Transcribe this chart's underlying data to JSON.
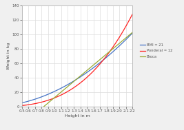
{
  "title": "",
  "xlabel": "Height in m",
  "ylabel": "Weight in kg",
  "xmin": 0.5,
  "xmax": 2.2,
  "ymin": 0,
  "ymax": 140,
  "xticks": [
    0.5,
    0.6,
    0.7,
    0.8,
    0.9,
    1.0,
    1.1,
    1.2,
    1.3,
    1.4,
    1.5,
    1.6,
    1.7,
    1.8,
    1.9,
    2.0,
    2.1,
    2.2
  ],
  "yticks": [
    0,
    20,
    40,
    60,
    80,
    100,
    120,
    140
  ],
  "bmi_value": 21,
  "ponderal_value": 12,
  "color_bmi": "#4472C4",
  "color_ponderal": "#FF2222",
  "color_broca": "#99AA33",
  "legend_bmi": "BMI = 21",
  "legend_ponderal": "Ponderal = 12",
  "legend_broca": "Broca",
  "line_width": 0.9,
  "bg_color": "#F0F0F0",
  "plot_bg": "#FFFFFF",
  "grid_color": "#DDDDDD"
}
